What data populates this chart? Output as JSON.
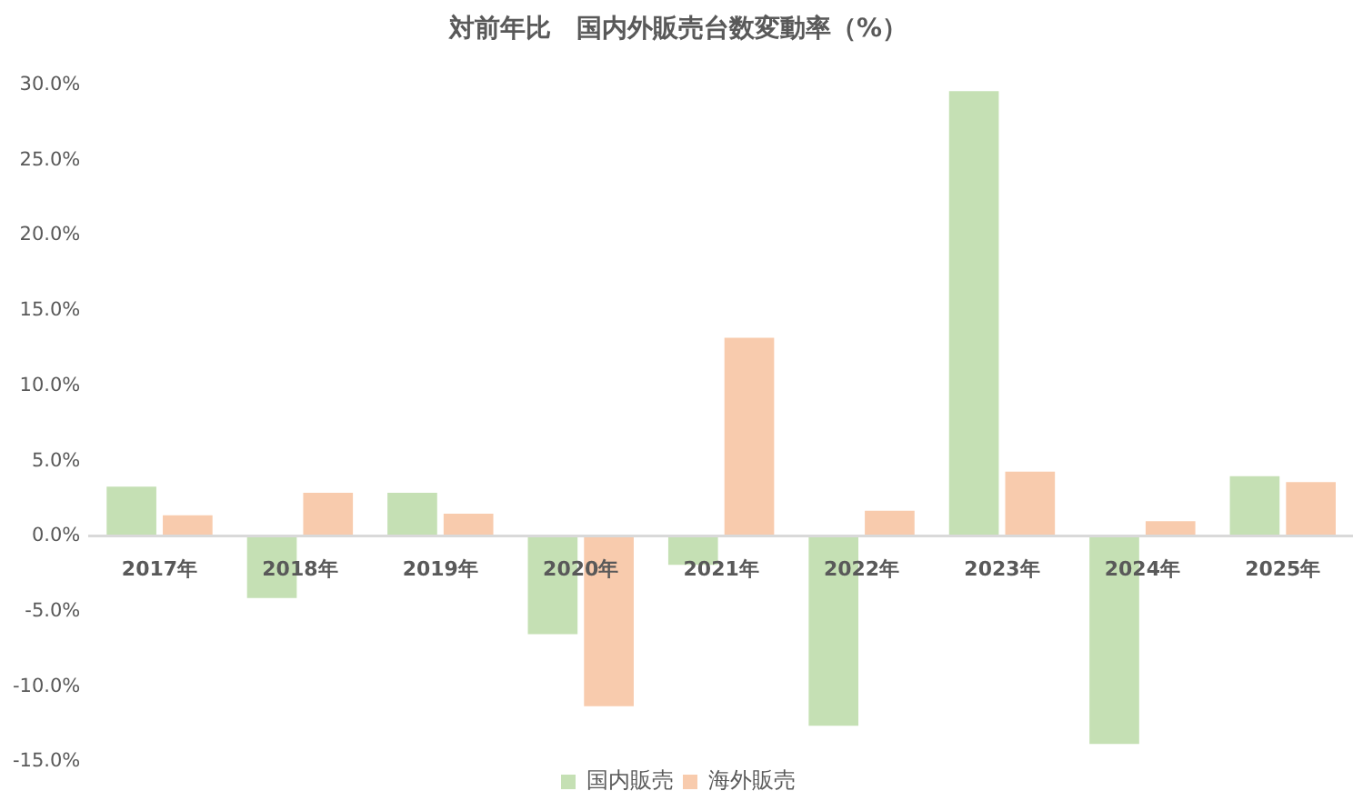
{
  "chart_data": {
    "type": "bar",
    "title": "対前年比　国内外販売台数変動率（%）",
    "categories": [
      "2017年",
      "2018年",
      "2019年",
      "2020年",
      "2021年",
      "2022年",
      "2023年",
      "2024年",
      "2025年"
    ],
    "series": [
      {
        "name": "国内販売",
        "color": "#c5e0b4",
        "values": [
          3.3,
          -4.1,
          2.9,
          -6.5,
          -1.9,
          -12.6,
          29.6,
          -13.8,
          4.0
        ]
      },
      {
        "name": "海外販売",
        "color": "#f8cbad",
        "values": [
          1.4,
          2.9,
          1.5,
          -11.3,
          13.2,
          1.7,
          4.3,
          1.0,
          3.6
        ]
      }
    ],
    "ylim": [
      -15,
      30
    ],
    "yticks": [
      {
        "value": -15,
        "label": "-15.0%"
      },
      {
        "value": -10,
        "label": "-10.0%"
      },
      {
        "value": -5,
        "label": "-5.0%"
      },
      {
        "value": 0,
        "label": "0.0%"
      },
      {
        "value": 5,
        "label": "5.0%"
      },
      {
        "value": 10,
        "label": "10.0%"
      },
      {
        "value": 15,
        "label": "15.0%"
      },
      {
        "value": 20,
        "label": "20.0%"
      },
      {
        "value": 25,
        "label": "25.0%"
      },
      {
        "value": 30,
        "label": "30.0%"
      }
    ],
    "grid": false,
    "legend": "bottom"
  }
}
